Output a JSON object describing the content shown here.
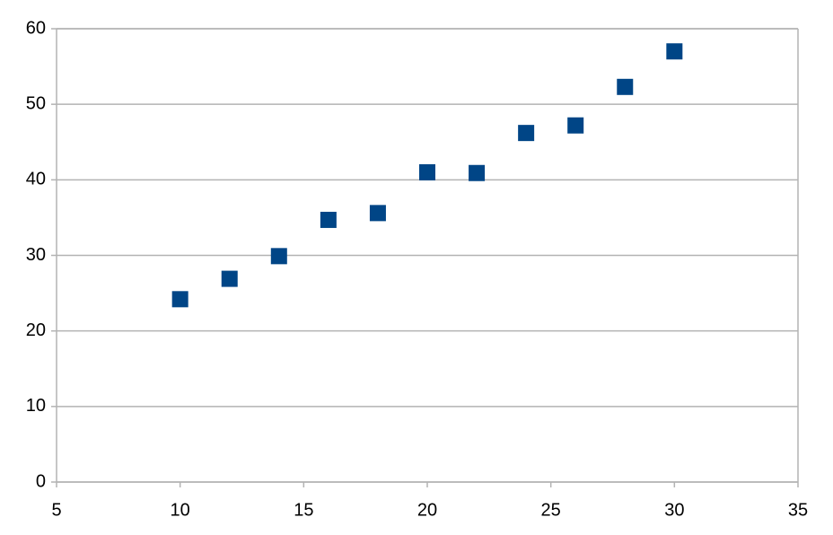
{
  "chart_data": {
    "type": "scatter",
    "series": [
      {
        "color": "#004586",
        "x": [
          10,
          12,
          14,
          16,
          18,
          20,
          22,
          24,
          26,
          28,
          30
        ],
        "values": [
          24.2,
          26.9,
          29.9,
          34.7,
          35.6,
          41.0,
          40.9,
          46.2,
          47.2,
          52.3,
          57.0
        ]
      }
    ],
    "xlim": [
      5,
      35
    ],
    "xticks": [
      5,
      10,
      15,
      20,
      25,
      30,
      35
    ],
    "ylim": [
      0,
      60
    ],
    "yticks": [
      0,
      10,
      20,
      30,
      40,
      50,
      60
    ],
    "grid": true
  }
}
